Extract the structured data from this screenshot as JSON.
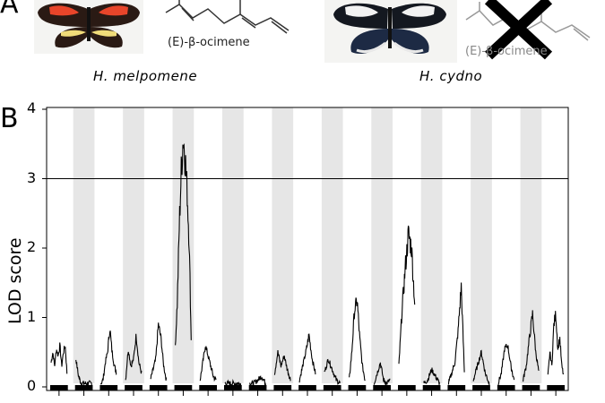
{
  "panel_a": {
    "letter": "A",
    "left_species": "H. melpomene",
    "right_species": "H. cydno",
    "left_compound": "(E)-β-ocimene",
    "right_compound": "(E)-β-ocimene",
    "right_compound_crossed_out": true,
    "left_butterfly_image": "butterfly-red-band",
    "right_butterfly_image": "butterfly-white-band"
  },
  "panel_b": {
    "letter": "B"
  },
  "chart_data": {
    "type": "line",
    "title": "",
    "xlabel": "",
    "ylabel": "LOD score",
    "ylim": [
      0,
      4
    ],
    "yticks": [
      0,
      1,
      2,
      3,
      4
    ],
    "threshold": 3,
    "n_chromosomes": 21,
    "shaded_bands": "alternating chromosomes (2, 4, 6, ... shaded grey)",
    "chromosome_profiles": [
      {
        "chr": 1,
        "lod": [
          0.35,
          0.5,
          0.3,
          0.55,
          0.45,
          0.6,
          0.3,
          0.5,
          0.6,
          0.2
        ]
      },
      {
        "chr": 2,
        "lod": [
          0.4,
          0.15,
          0.05,
          0.05,
          0.05,
          0.05,
          0.05
        ]
      },
      {
        "chr": 3,
        "lod": [
          0.05,
          0.1,
          0.35,
          0.5,
          0.85,
          0.5,
          0.3,
          0.2
        ]
      },
      {
        "chr": 4,
        "lod": [
          0.1,
          0.55,
          0.3,
          0.4,
          0.75,
          0.35,
          0.2
        ]
      },
      {
        "chr": 5,
        "lod": [
          0.1,
          0.25,
          0.4,
          0.9,
          0.7,
          0.3,
          0.1
        ]
      },
      {
        "chr": 6,
        "lod": [
          0.6,
          1.2,
          2.3,
          3.1,
          3.6,
          3.3,
          2.8,
          2.1,
          0.7
        ]
      },
      {
        "chr": 7,
        "lod": [
          0.1,
          0.35,
          0.6,
          0.45,
          0.3,
          0.15,
          0.1
        ]
      },
      {
        "chr": 8,
        "lod": [
          0.05,
          0.05,
          0.05,
          0.05,
          0.05
        ]
      },
      {
        "chr": 9,
        "lod": [
          0.05,
          0.05,
          0.1,
          0.15,
          0.05
        ]
      },
      {
        "chr": 10,
        "lod": [
          0.2,
          0.5,
          0.3,
          0.45,
          0.25,
          0.1
        ]
      },
      {
        "chr": 11,
        "lod": [
          0.1,
          0.3,
          0.5,
          0.75,
          0.4,
          0.2
        ]
      },
      {
        "chr": 12,
        "lod": [
          0.2,
          0.4,
          0.25,
          0.1,
          0.05
        ]
      },
      {
        "chr": 13,
        "lod": [
          0.1,
          0.5,
          1.1,
          1.25,
          0.7,
          0.3,
          0.1
        ]
      },
      {
        "chr": 14,
        "lod": [
          0.05,
          0.2,
          0.35,
          0.1,
          0.05,
          0.1
        ]
      },
      {
        "chr": 15,
        "lod": [
          0.3,
          1.1,
          1.7,
          2.2,
          2.0,
          1.2
        ]
      },
      {
        "chr": 16,
        "lod": [
          0.05,
          0.1,
          0.25,
          0.15,
          0.05
        ]
      },
      {
        "chr": 17,
        "lod": [
          0.05,
          0.2,
          0.35,
          0.8,
          1.45,
          0.2
        ]
      },
      {
        "chr": 18,
        "lod": [
          0.1,
          0.3,
          0.5,
          0.2,
          0.05
        ]
      },
      {
        "chr": 19,
        "lod": [
          0.05,
          0.2,
          0.55,
          0.6,
          0.3,
          0.1
        ]
      },
      {
        "chr": 20,
        "lod": [
          0.1,
          0.3,
          0.7,
          1.05,
          0.5,
          0.2
        ]
      },
      {
        "chr": 21,
        "lod": [
          0.15,
          0.5,
          0.3,
          0.9,
          1.05,
          0.55,
          0.7,
          0.3,
          0.15
        ]
      }
    ]
  }
}
